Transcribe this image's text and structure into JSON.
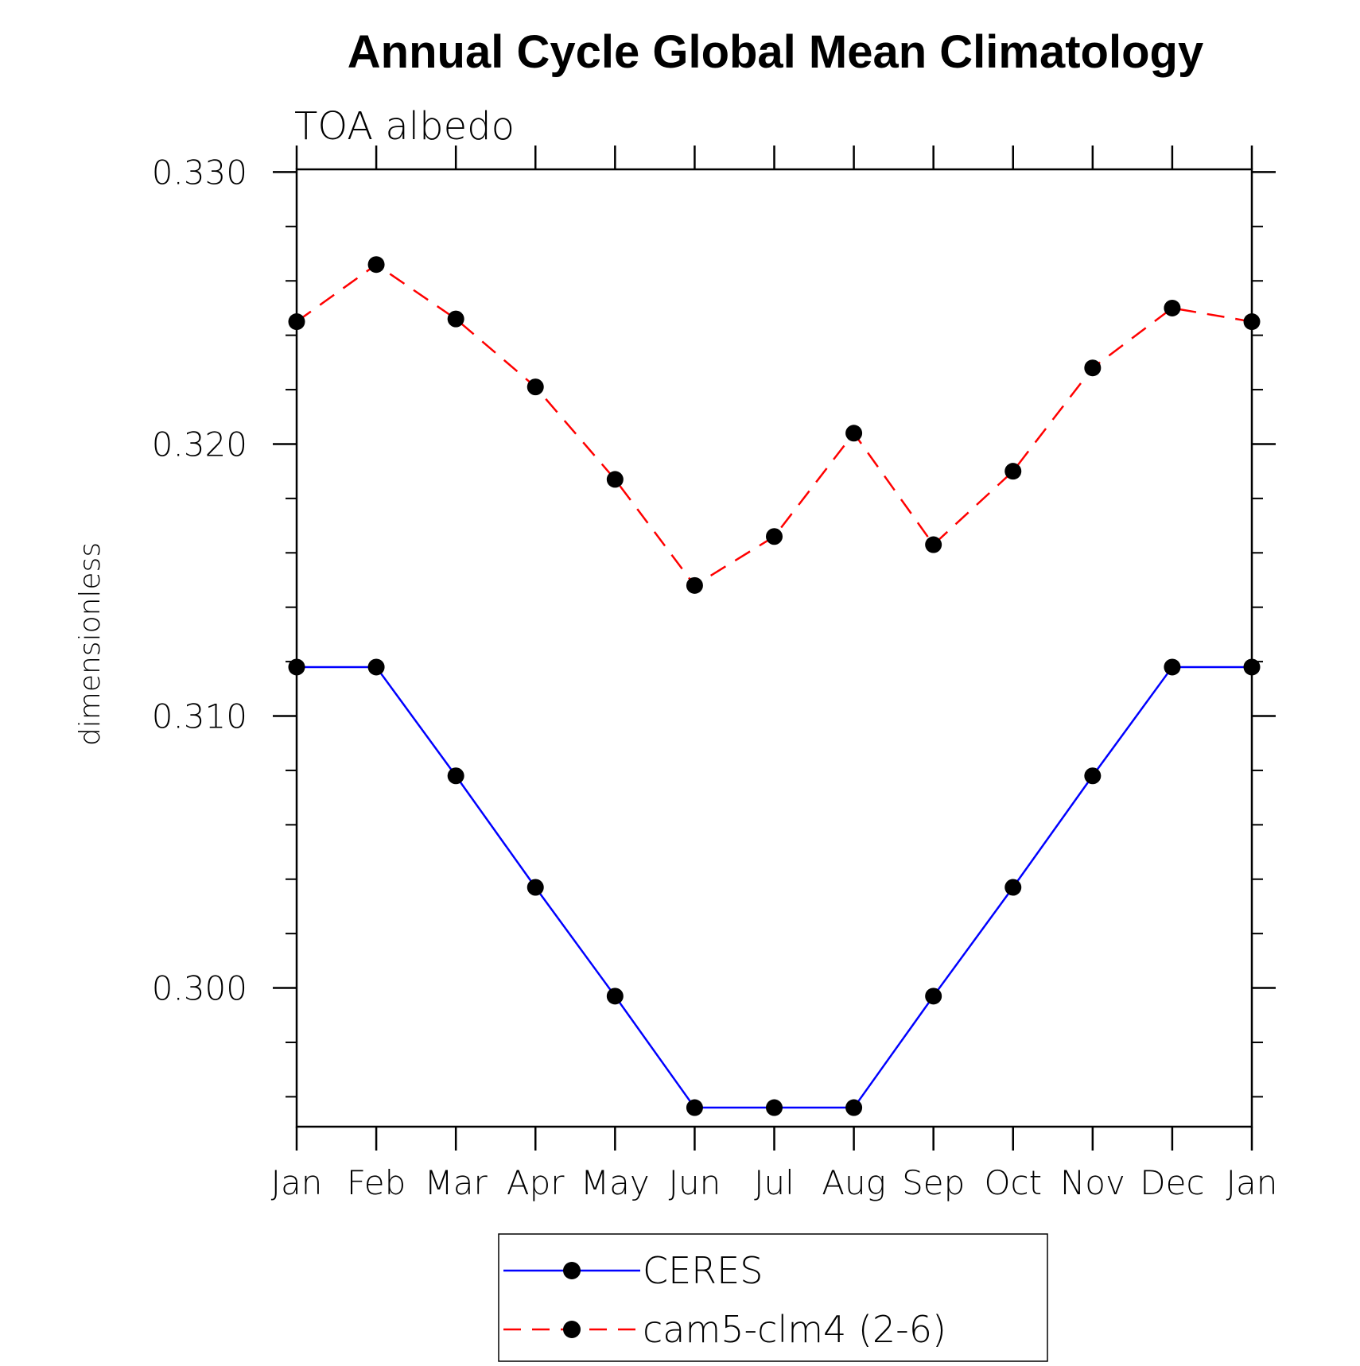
{
  "chart_data": {
    "type": "line",
    "title": "Annual Cycle Global Mean Climatology",
    "subtitle": "TOA albedo",
    "xlabel": "",
    "ylabel": "dimensionless",
    "categories": [
      "Jan",
      "Feb",
      "Mar",
      "Apr",
      "May",
      "Jun",
      "Jul",
      "Aug",
      "Sep",
      "Oct",
      "Nov",
      "Dec",
      "Jan"
    ],
    "ylim": [
      0.2949,
      0.3301
    ],
    "y_ticks": [
      "0.300",
      "0.310",
      "0.320",
      "0.330"
    ],
    "y_tick_values": [
      0.3,
      0.31,
      0.32,
      0.33
    ],
    "y_minor_step": 0.002,
    "grid": false,
    "legend_position": "bottom-center",
    "series": [
      {
        "name": "CERES",
        "color": "#0000ff",
        "line_style": "solid",
        "marker": "filled-circle",
        "marker_color": "#000000",
        "values": [
          0.3118,
          0.3118,
          0.3078,
          0.3037,
          0.2997,
          0.2956,
          0.2956,
          0.2956,
          0.2997,
          0.3037,
          0.3078,
          0.3118,
          0.3118
        ]
      },
      {
        "name": "cam5-clm4 (2-6)",
        "color": "#ff0000",
        "line_style": "dashed",
        "marker": "filled-circle",
        "marker_color": "#000000",
        "values": [
          0.3245,
          0.3266,
          0.3246,
          0.3221,
          0.3187,
          0.3148,
          0.3166,
          0.3204,
          0.3163,
          0.319,
          0.3228,
          0.325,
          0.3245
        ]
      }
    ]
  }
}
